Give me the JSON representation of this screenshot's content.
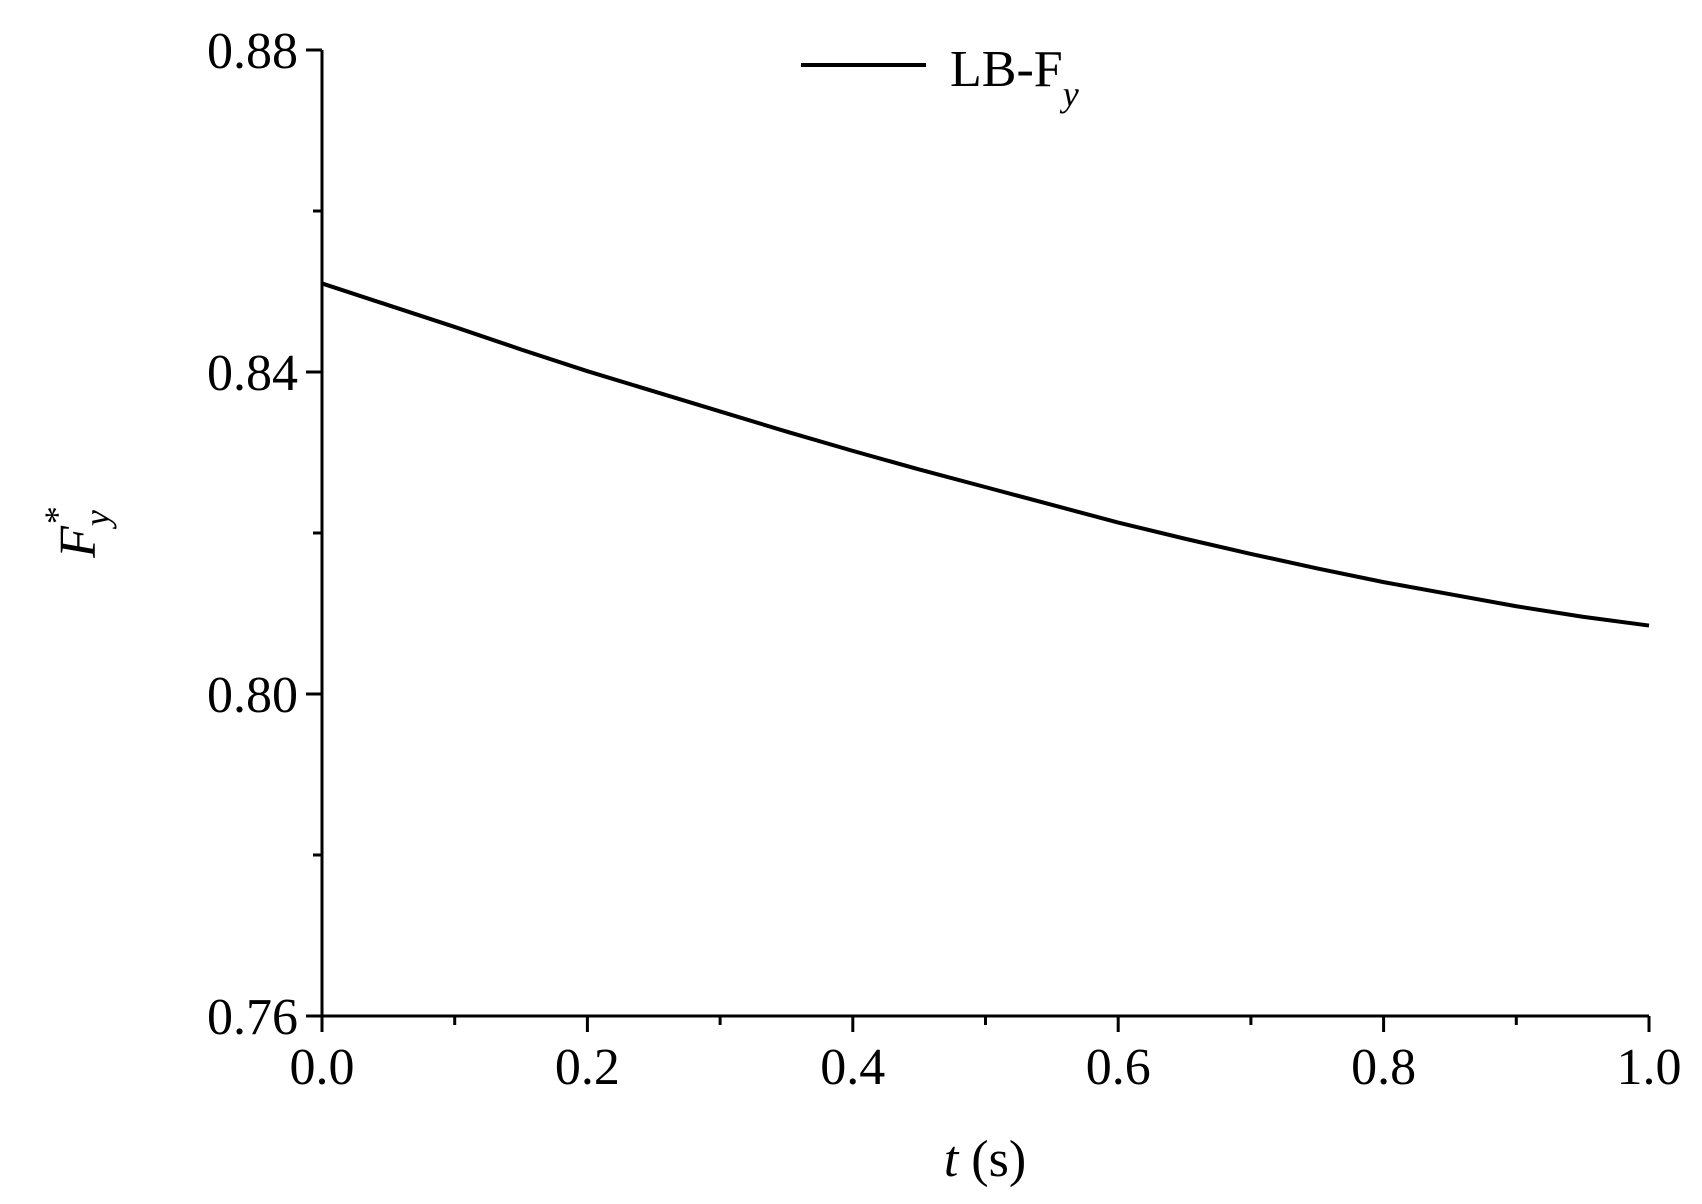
{
  "chart_data": {
    "type": "line",
    "ylabel": {
      "main": "F",
      "sub": "y",
      "sup": "*"
    },
    "xlabel": {
      "main": "t",
      "rest": " (s)"
    },
    "x": [
      0,
      0.05,
      0.1,
      0.15,
      0.2,
      0.25,
      0.3,
      0.35,
      0.4,
      0.45,
      0.5,
      0.55,
      0.6,
      0.65,
      0.7,
      0.75,
      0.8,
      0.85,
      0.9,
      0.95,
      1.0
    ],
    "series": [
      {
        "name": "LB-F",
        "name_sub": "y",
        "color": "#000000",
        "values": [
          0.851,
          0.8483,
          0.8456,
          0.8428,
          0.8401,
          0.8376,
          0.8351,
          0.8326,
          0.8302,
          0.8279,
          0.8257,
          0.8235,
          0.8213,
          0.8193,
          0.8174,
          0.8156,
          0.8139,
          0.8124,
          0.8109,
          0.8096,
          0.8085
        ]
      }
    ],
    "xlim": [
      0,
      1.0
    ],
    "ylim": [
      0.76,
      0.88
    ],
    "xticks": [
      {
        "value": 0,
        "label": "0.0"
      },
      0.2,
      0.4,
      0.6,
      0.8,
      {
        "value": 1.0,
        "label": "1.0"
      }
    ],
    "xminor_ticks": [
      0.1,
      0.3,
      0.5,
      0.7,
      0.9
    ],
    "yticks": [
      0.76,
      {
        "value": 0.8,
        "label": "0.80"
      },
      0.84,
      0.88
    ],
    "yminor_ticks": [
      0.78,
      0.82,
      0.86
    ],
    "grid": false,
    "legend": "top"
  }
}
